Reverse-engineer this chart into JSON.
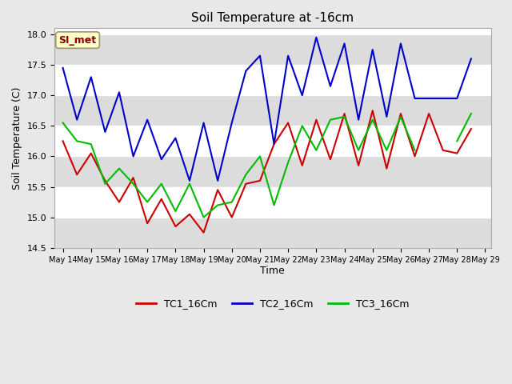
{
  "title": "Soil Temperature at -16cm",
  "xlabel": "Time",
  "ylabel": "Soil Temperature (C)",
  "ylim": [
    14.5,
    18.1
  ],
  "fig_bg_color": "#e8e8e8",
  "plot_bg_color": "#ffffff",
  "band_color": "#dcdcdc",
  "annotation_text": "SI_met",
  "annotation_bg": "#ffffcc",
  "annotation_border": "#999966",
  "annotation_text_color": "#880000",
  "tick_labels": [
    "May 14",
    "May 15",
    "May 16",
    "May 17",
    "May 18",
    "May 19",
    "May 20",
    "May 21",
    "May 22",
    "May 23",
    "May 24",
    "May 25",
    "May 26",
    "May 27",
    "May 28",
    "May 29"
  ],
  "tc1_color": "#cc0000",
  "tc2_color": "#0000cc",
  "tc3_color": "#00bb00",
  "legend_labels": [
    "TC1_16Cm",
    "TC2_16Cm",
    "TC3_16Cm"
  ],
  "tc1_x": [
    0,
    0.5,
    1,
    1.5,
    2,
    2.5,
    3,
    3.5,
    4,
    4.5,
    5,
    5.5,
    6,
    6.5,
    7,
    7.5,
    8,
    8.5,
    9,
    9.5,
    10,
    10.5,
    11,
    11.5,
    12,
    12.5,
    13,
    13.5,
    14,
    14.5
  ],
  "tc1_y": [
    16.25,
    15.7,
    16.05,
    15.6,
    15.25,
    15.65,
    14.9,
    15.3,
    14.85,
    15.05,
    14.75,
    15.45,
    15.0,
    15.55,
    15.6,
    16.2,
    16.55,
    15.85,
    16.6,
    15.95,
    16.7,
    15.85,
    16.75,
    15.8,
    16.7,
    16.0,
    16.7,
    16.1,
    16.05,
    16.45
  ],
  "tc2_x": [
    0,
    0.5,
    1,
    1.5,
    2,
    2.5,
    3,
    3.5,
    4,
    4.5,
    5,
    5.5,
    6,
    6.5,
    7,
    7.5,
    8,
    8.5,
    9,
    9.5,
    10,
    10.5,
    11,
    11.5,
    12,
    12.5,
    13,
    13.5,
    14,
    14.5
  ],
  "tc2_y": [
    17.45,
    16.6,
    17.3,
    16.4,
    17.05,
    16.0,
    16.6,
    15.95,
    16.3,
    15.6,
    16.55,
    15.6,
    16.55,
    17.4,
    17.65,
    16.2,
    17.65,
    17.0,
    17.95,
    17.15,
    17.85,
    16.6,
    17.75,
    16.65,
    17.85,
    16.95,
    16.95,
    16.95,
    16.95,
    17.6
  ],
  "tc3_x": [
    0,
    0.5,
    1,
    1.5,
    2,
    2.5,
    3,
    3.5,
    4,
    4.5,
    5,
    5.5,
    6,
    6.5,
    7,
    7.5,
    8,
    8.5,
    9,
    9.5,
    10,
    10.5,
    11,
    11.5,
    12,
    12.5,
    13,
    13.5,
    14,
    14.5
  ],
  "tc3_y": [
    16.55,
    16.25,
    16.2,
    15.55,
    15.8,
    15.55,
    15.25,
    15.55,
    15.1,
    15.55,
    15.0,
    15.2,
    15.25,
    15.7,
    16.0,
    15.2,
    15.9,
    16.5,
    16.1,
    16.6,
    16.65,
    16.1,
    16.6,
    16.1,
    16.65,
    16.1,
    null,
    null,
    16.25,
    16.7
  ],
  "grid_color": "#ffffff",
  "line_width": 1.5,
  "yticks": [
    14.5,
    15.0,
    15.5,
    16.0,
    16.5,
    17.0,
    17.5,
    18.0
  ]
}
